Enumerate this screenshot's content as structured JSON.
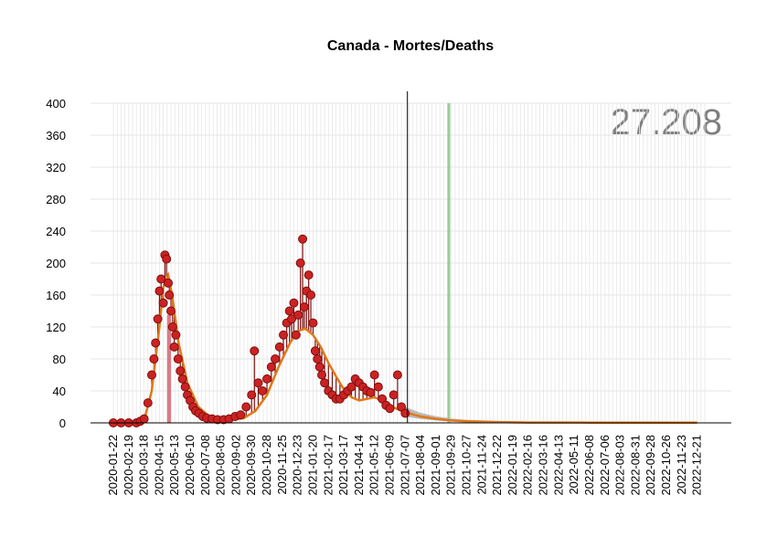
{
  "chart_data": {
    "type": "line",
    "title": "Canada - Mortes/Deaths",
    "xlabel": "",
    "ylabel": "",
    "big_number": "27.208",
    "ylim": [
      0,
      400
    ],
    "y_ticks": [
      0,
      40,
      80,
      120,
      160,
      200,
      240,
      280,
      320,
      360,
      400
    ],
    "x_range": [
      "2020-01-22",
      "2023-01-04"
    ],
    "x_ticks": [
      "2020-01-22",
      "2020-02-19",
      "2020-03-18",
      "2020-04-15",
      "2020-05-13",
      "2020-06-10",
      "2020-07-08",
      "2020-08-05",
      "2020-09-02",
      "2020-09-30",
      "2020-10-28",
      "2020-11-25",
      "2020-12-23",
      "2021-01-20",
      "2021-02-17",
      "2021-03-17",
      "2021-04-14",
      "2021-05-12",
      "2021-06-09",
      "2021-07-07",
      "2021-08-04",
      "2021-09-01",
      "2021-09-29",
      "2021-10-27",
      "2021-11-24",
      "2021-12-22",
      "2022-01-19",
      "2022-02-16",
      "2022-03-16",
      "2022-04-13",
      "2022-05-11",
      "2022-06-08",
      "2022-07-06",
      "2022-08-03",
      "2022-08-31",
      "2022-09-28",
      "2022-10-26",
      "2022-11-23",
      "2022-12-21"
    ],
    "grid": true,
    "vertical_line_date": "2021-07-11",
    "red_band": [
      "2020-04-29",
      "2020-05-06"
    ],
    "green_band": [
      "2021-09-22",
      "2021-09-27"
    ],
    "colors": {
      "points_fill": "#cc2222",
      "points_stroke": "#7a1010",
      "stems": "#7a1010",
      "smooth_line": "#e07818",
      "forecast_band": "#b0b0b0",
      "red_band": "#d05060",
      "green_band": "#80c080",
      "grid": "#e6e6e6",
      "big_number": "#7f7f7f"
    },
    "series": [
      {
        "kind": "observed",
        "x": [
          "2020-01-22",
          "2020-02-05",
          "2020-02-19",
          "2020-03-04",
          "2020-03-11",
          "2020-03-18",
          "2020-03-25",
          "2020-04-01",
          "2020-04-05",
          "2020-04-08",
          "2020-04-12",
          "2020-04-15",
          "2020-04-18",
          "2020-04-22",
          "2020-04-25",
          "2020-04-28",
          "2020-05-01",
          "2020-05-03",
          "2020-05-06",
          "2020-05-09",
          "2020-05-12",
          "2020-05-15",
          "2020-05-19",
          "2020-05-23",
          "2020-05-27",
          "2020-06-01",
          "2020-06-05",
          "2020-06-10",
          "2020-06-15",
          "2020-06-20",
          "2020-06-26",
          "2020-07-03",
          "2020-07-10",
          "2020-07-20",
          "2020-07-30",
          "2020-08-10",
          "2020-08-20",
          "2020-08-31",
          "2020-09-10",
          "2020-09-20",
          "2020-09-30",
          "2020-10-05",
          "2020-10-12",
          "2020-10-20",
          "2020-10-28",
          "2020-11-05",
          "2020-11-12",
          "2020-11-20",
          "2020-11-27",
          "2020-12-03",
          "2020-12-08",
          "2020-12-12",
          "2020-12-16",
          "2020-12-20",
          "2020-12-24",
          "2020-12-28",
          "2021-01-01",
          "2021-01-04",
          "2021-01-08",
          "2021-01-12",
          "2021-01-16",
          "2021-01-20",
          "2021-01-24",
          "2021-01-28",
          "2021-02-01",
          "2021-02-05",
          "2021-02-10",
          "2021-02-17",
          "2021-02-24",
          "2021-03-03",
          "2021-03-10",
          "2021-03-17",
          "2021-03-24",
          "2021-03-31",
          "2021-04-07",
          "2021-04-14",
          "2021-04-21",
          "2021-04-28",
          "2021-05-05",
          "2021-05-12",
          "2021-05-19",
          "2021-05-26",
          "2021-06-02",
          "2021-06-09",
          "2021-06-16",
          "2021-06-23",
          "2021-06-30",
          "2021-07-07"
        ],
        "y": [
          0,
          0,
          0,
          0,
          2,
          5,
          25,
          60,
          80,
          100,
          130,
          165,
          180,
          150,
          210,
          205,
          175,
          160,
          140,
          120,
          95,
          110,
          80,
          65,
          55,
          45,
          35,
          28,
          20,
          15,
          12,
          8,
          6,
          5,
          4,
          4,
          5,
          8,
          10,
          20,
          35,
          90,
          50,
          40,
          55,
          70,
          80,
          95,
          110,
          125,
          140,
          130,
          150,
          110,
          135,
          200,
          230,
          145,
          165,
          185,
          160,
          125,
          90,
          80,
          70,
          60,
          50,
          40,
          35,
          30,
          30,
          35,
          40,
          45,
          55,
          50,
          45,
          40,
          38,
          60,
          45,
          30,
          22,
          18,
          35,
          60,
          20,
          12
        ]
      },
      {
        "kind": "smoothed",
        "x": [
          "2020-01-22",
          "2020-03-04",
          "2020-03-18",
          "2020-04-01",
          "2020-04-15",
          "2020-04-22",
          "2020-05-01",
          "2020-05-08",
          "2020-05-20",
          "2020-06-05",
          "2020-06-25",
          "2020-07-15",
          "2020-08-05",
          "2020-08-26",
          "2020-09-16",
          "2020-10-07",
          "2020-10-28",
          "2020-11-18",
          "2020-12-09",
          "2020-12-23",
          "2021-01-06",
          "2021-01-20",
          "2021-02-03",
          "2021-02-17",
          "2021-03-03",
          "2021-03-17",
          "2021-03-31",
          "2021-04-14",
          "2021-04-28",
          "2021-05-12",
          "2021-05-26",
          "2021-06-09",
          "2021-06-23",
          "2021-07-07",
          "2021-08-04",
          "2021-09-01",
          "2021-09-29",
          "2021-10-27",
          "2021-11-24",
          "2021-12-22",
          "2022-02-16",
          "2022-06-08",
          "2022-12-21"
        ],
        "y": [
          0,
          0,
          3,
          40,
          120,
          170,
          185,
          160,
          100,
          50,
          20,
          8,
          4,
          4,
          6,
          15,
          35,
          70,
          100,
          115,
          118,
          110,
          95,
          75,
          58,
          42,
          32,
          28,
          30,
          32,
          28,
          22,
          17,
          13,
          8,
          5,
          3,
          2,
          1.5,
          1,
          0.5,
          0.3,
          0.2
        ]
      }
    ]
  }
}
